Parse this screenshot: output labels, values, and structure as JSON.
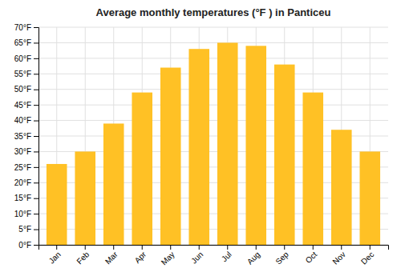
{
  "chart_data": {
    "type": "bar",
    "title": "Average monthly temperatures (°F ) in Panticeu",
    "categories": [
      "Jan",
      "Feb",
      "Mar",
      "Apr",
      "May",
      "Jun",
      "Jul",
      "Aug",
      "Sep",
      "Oct",
      "Nov",
      "Dec"
    ],
    "values": [
      26,
      30,
      39,
      49,
      57,
      63,
      65,
      64,
      58,
      49,
      37,
      30
    ],
    "color": "#FFC125",
    "ylim": [
      0,
      70
    ],
    "yticks": [
      {
        "value": 0,
        "label": "0°F"
      },
      {
        "value": 5,
        "label": "5°F"
      },
      {
        "value": 10,
        "label": "10°F"
      },
      {
        "value": 15,
        "label": "15°F"
      },
      {
        "value": 20,
        "label": "20°F"
      },
      {
        "value": 25,
        "label": "25°F"
      },
      {
        "value": 30,
        "label": "30°F"
      },
      {
        "value": 35,
        "label": "35°F"
      },
      {
        "value": 40,
        "label": "40°F"
      },
      {
        "value": 45,
        "label": "45°F"
      },
      {
        "value": 50,
        "label": "50°F"
      },
      {
        "value": 55,
        "label": "55°F"
      },
      {
        "value": 60,
        "label": "60°F"
      },
      {
        "value": 65,
        "label": "65°F"
      },
      {
        "value": 70,
        "label": "70°F"
      }
    ],
    "grid": true
  }
}
